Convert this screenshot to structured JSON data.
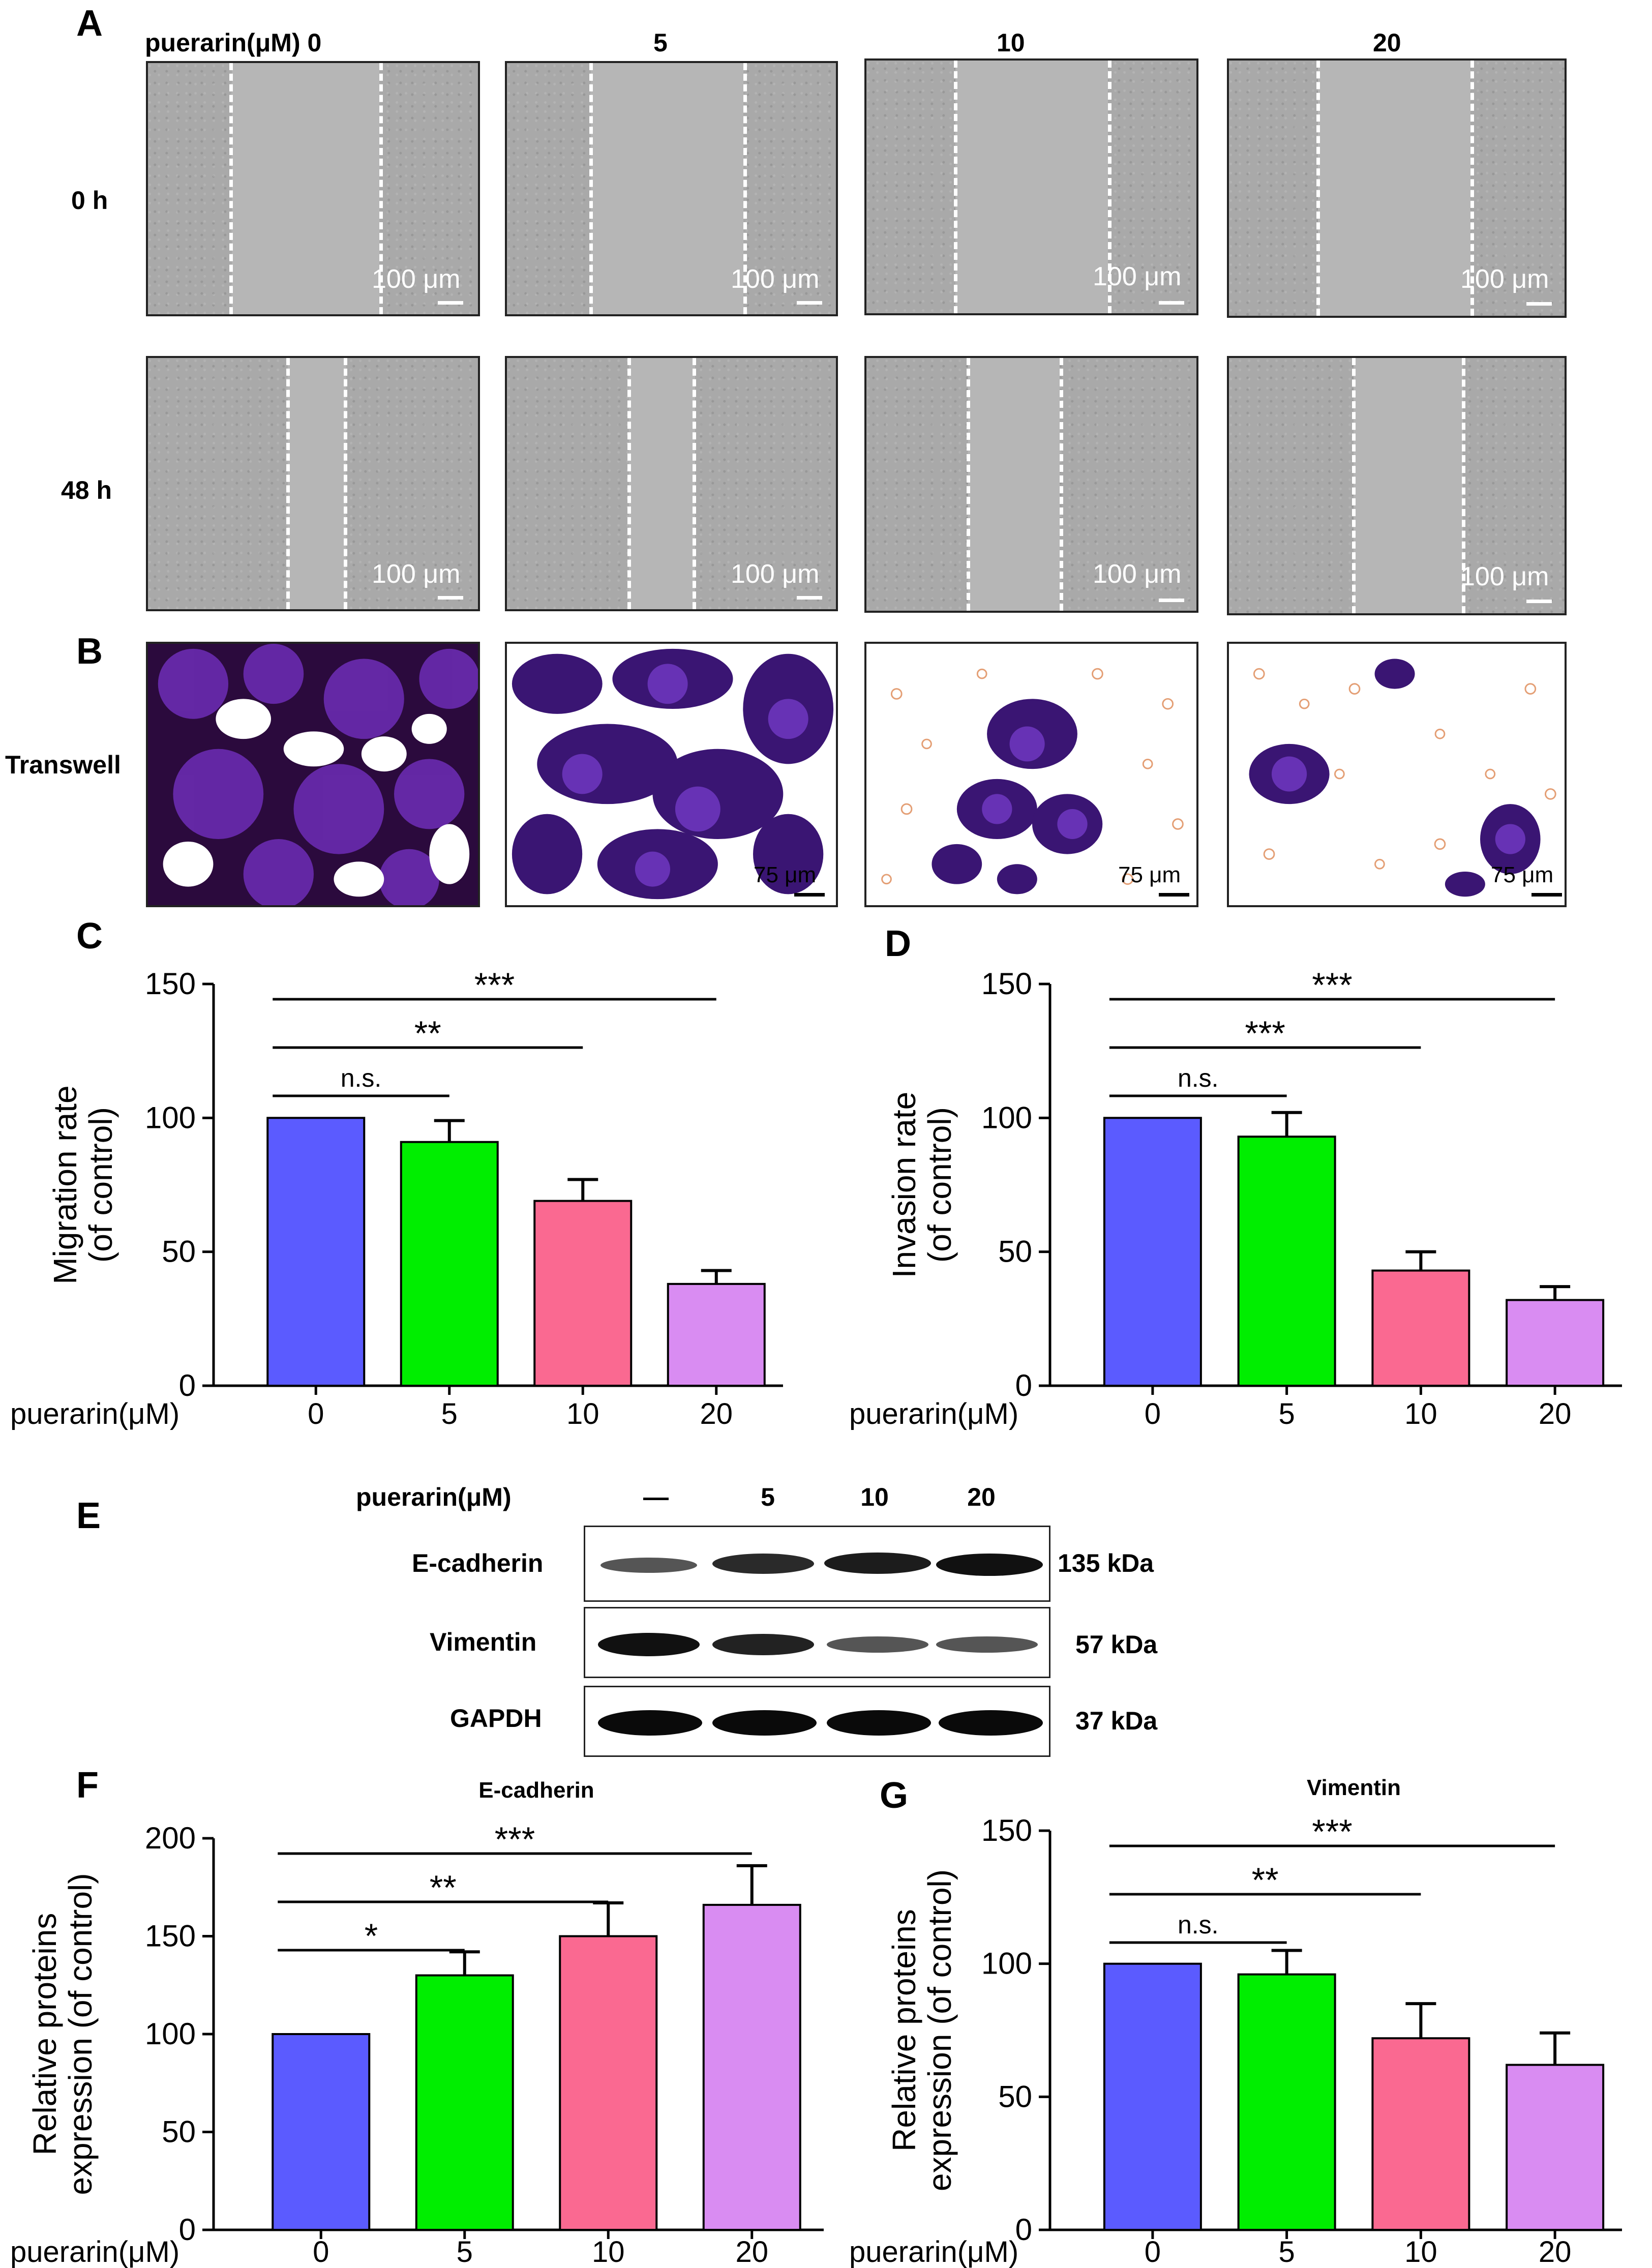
{
  "panel_labels": {
    "A": "A",
    "B": "B",
    "C": "C",
    "D": "D",
    "E": "E",
    "F": "F",
    "G": "G"
  },
  "panelA": {
    "dose_prefix": "puerarin(μM)",
    "doses": [
      "0",
      "5",
      "10",
      "20"
    ],
    "rows": [
      "0 h",
      "48 h"
    ],
    "scale_label": "100 μm"
  },
  "panelB": {
    "row_label": "Transwell",
    "scale_label": "75 μm"
  },
  "panelE": {
    "dose_header": "puerarin(μM)",
    "lanes": [
      "—",
      "5",
      "10",
      "20"
    ],
    "proteins": [
      {
        "name": "E-cadherin",
        "size": "135 kDa"
      },
      {
        "name": "Vimentin",
        "size": "57 kDa"
      },
      {
        "name": "GAPDH",
        "size": "37 kDa"
      }
    ]
  },
  "chart_data": [
    {
      "id": "C",
      "type": "bar",
      "title": "",
      "ylabel_lines": [
        "Migration rate",
        "(of control)"
      ],
      "xlabel": "puerarin(μM)",
      "categories": [
        "0",
        "5",
        "10",
        "20"
      ],
      "values": [
        100,
        91,
        69,
        38
      ],
      "errors": [
        0,
        8,
        8,
        5
      ],
      "colors": [
        "#5b5bff",
        "#00ee00",
        "#fa6991",
        "#d98cf2"
      ],
      "ylim": [
        0,
        150
      ],
      "yticks": [
        0,
        50,
        100,
        150
      ],
      "significance": [
        {
          "from": 0,
          "to": 1,
          "label": "n.s."
        },
        {
          "from": 0,
          "to": 2,
          "label": "**"
        },
        {
          "from": 0,
          "to": 3,
          "label": "***"
        }
      ]
    },
    {
      "id": "D",
      "type": "bar",
      "title": "",
      "ylabel_lines": [
        "Invasion rate",
        "(of control)"
      ],
      "xlabel": "puerarin(μM)",
      "categories": [
        "0",
        "5",
        "10",
        "20"
      ],
      "values": [
        100,
        93,
        43,
        32
      ],
      "errors": [
        0,
        9,
        7,
        5
      ],
      "colors": [
        "#5b5bff",
        "#00ee00",
        "#fa6991",
        "#d98cf2"
      ],
      "ylim": [
        0,
        150
      ],
      "yticks": [
        0,
        50,
        100,
        150
      ],
      "significance": [
        {
          "from": 0,
          "to": 1,
          "label": "n.s."
        },
        {
          "from": 0,
          "to": 2,
          "label": "***"
        },
        {
          "from": 0,
          "to": 3,
          "label": "***"
        }
      ]
    },
    {
      "id": "F",
      "type": "bar",
      "title": "E-cadherin",
      "ylabel_lines": [
        "Relative proteins",
        "expression (of control)"
      ],
      "xlabel": "puerarin(μM)",
      "categories": [
        "0",
        "5",
        "10",
        "20"
      ],
      "values": [
        100,
        130,
        150,
        166
      ],
      "errors": [
        0,
        12,
        17,
        20
      ],
      "colors": [
        "#5b5bff",
        "#00ee00",
        "#fa6991",
        "#d98cf2"
      ],
      "ylim": [
        0,
        200
      ],
      "yticks": [
        0,
        50,
        100,
        150,
        200
      ],
      "significance": [
        {
          "from": 0,
          "to": 1,
          "label": "*"
        },
        {
          "from": 0,
          "to": 2,
          "label": "**"
        },
        {
          "from": 0,
          "to": 3,
          "label": "***"
        }
      ]
    },
    {
      "id": "G",
      "type": "bar",
      "title": "Vimentin",
      "ylabel_lines": [
        "Relative proteins",
        "expression (of control)"
      ],
      "xlabel": "puerarin(μM)",
      "categories": [
        "0",
        "5",
        "10",
        "20"
      ],
      "values": [
        100,
        96,
        72,
        62
      ],
      "errors": [
        0,
        9,
        13,
        12
      ],
      "colors": [
        "#5b5bff",
        "#00ee00",
        "#fa6991",
        "#d98cf2"
      ],
      "ylim": [
        0,
        150
      ],
      "yticks": [
        0,
        50,
        100,
        150
      ],
      "significance": [
        {
          "from": 0,
          "to": 1,
          "label": "n.s."
        },
        {
          "from": 0,
          "to": 2,
          "label": "**"
        },
        {
          "from": 0,
          "to": 3,
          "label": "***"
        }
      ]
    }
  ]
}
